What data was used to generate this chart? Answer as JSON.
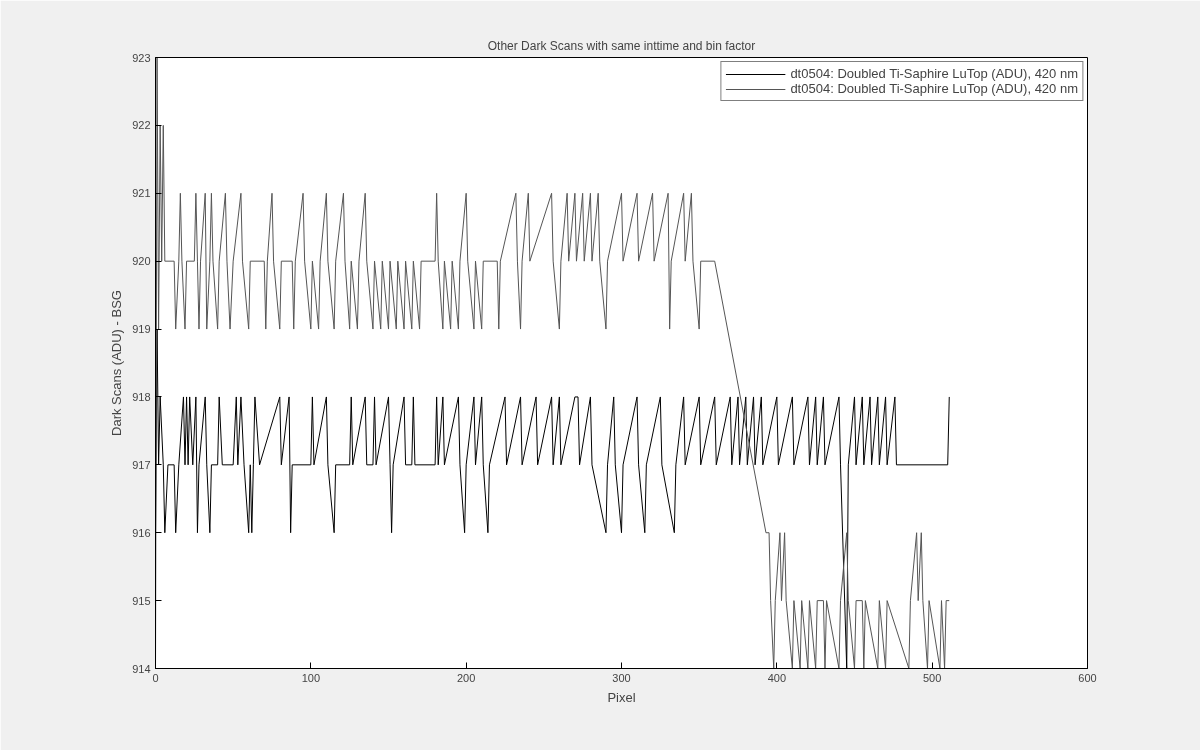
{
  "chart_data": {
    "type": "line",
    "title": "Other Dark Scans with same inttime and bin factor",
    "xlabel": "Pixel",
    "ylabel": "Dark Scans (ADU) - BSG",
    "xlim": [
      0,
      600
    ],
    "xticks": [
      0,
      100,
      200,
      300,
      400,
      500,
      600
    ],
    "ylim": [
      914,
      923
    ],
    "yticks": [
      914,
      915,
      916,
      917,
      918,
      919,
      920,
      921,
      922,
      923
    ],
    "grid": false,
    "legend": "top right",
    "line_style": "solid",
    "marker": "none",
    "series": [
      {
        "name": "dt0504: Doubled Ti-Saphire LuTop (ADU), 420 nm",
        "color": "#000000",
        "x": [
          0,
          1,
          2,
          3,
          5,
          6,
          8,
          12,
          13,
          15,
          18,
          19,
          20,
          21,
          22,
          24,
          26,
          27,
          28,
          32,
          33,
          35,
          36,
          40,
          41,
          43,
          50,
          52,
          53,
          55,
          57,
          60,
          61,
          62,
          63,
          64,
          67,
          80,
          81,
          86,
          87,
          88,
          100,
          101,
          102,
          110,
          111,
          115,
          116,
          125,
          126,
          127,
          135,
          136,
          140,
          141,
          142,
          150,
          151,
          152,
          153,
          160,
          161,
          165,
          166,
          167,
          180,
          181,
          182,
          185,
          186,
          195,
          196,
          199,
          200,
          205,
          206,
          210,
          211,
          214,
          215,
          225,
          226,
          235,
          236,
          245,
          246,
          255,
          256,
          260,
          261,
          270,
          272,
          273,
          280,
          281,
          290,
          291,
          295,
          296,
          300,
          301,
          310,
          311,
          315,
          316,
          325,
          326,
          334,
          335,
          340,
          341,
          350,
          351,
          360,
          361,
          370,
          371,
          375,
          376,
          380,
          381,
          385,
          386,
          390,
          391,
          400,
          401,
          410,
          411,
          420,
          421,
          425,
          426,
          430,
          431,
          440,
          441,
          445,
          446,
          450,
          451,
          455,
          456,
          460,
          461,
          465,
          466,
          470,
          471,
          476,
          477,
          510,
          511
        ],
        "values": [
          916,
          919,
          917,
          918,
          917,
          916,
          917,
          917,
          916,
          917,
          918,
          917,
          918,
          917,
          918,
          917,
          918,
          916,
          917,
          918,
          917,
          916,
          917,
          917,
          918,
          917,
          917,
          918,
          917,
          918,
          917,
          916,
          917,
          916,
          917,
          918,
          917,
          918,
          917,
          918,
          916,
          917,
          917,
          918,
          917,
          918,
          917,
          916,
          917,
          917,
          918,
          917,
          918,
          917,
          917,
          918,
          917,
          918,
          917,
          916,
          917,
          918,
          917,
          917,
          918,
          917,
          917,
          918,
          917,
          918,
          917,
          918,
          917,
          916,
          917,
          918,
          917,
          918,
          917,
          916,
          917,
          918,
          917,
          918,
          917,
          918,
          917,
          918,
          917,
          918,
          917,
          918,
          918,
          917,
          918,
          917,
          916,
          917,
          918,
          917,
          916,
          917,
          918,
          917,
          916,
          917,
          918,
          917,
          916,
          917,
          918,
          917,
          918,
          917,
          918,
          917,
          918,
          917,
          918,
          917,
          918,
          917,
          918,
          917,
          918,
          917,
          918,
          917,
          918,
          917,
          918,
          917,
          918,
          917,
          918,
          917,
          918,
          917,
          914,
          917,
          918,
          917,
          918,
          917,
          918,
          917,
          918,
          917,
          918,
          917,
          918,
          917,
          917,
          918
        ]
      },
      {
        "name": "dt0504: Doubled Ti-Saphire LuTop (ADU), 420 nm",
        "color": "#555555",
        "x": [
          0,
          1,
          2,
          3,
          4,
          5,
          6,
          12,
          13,
          15,
          16,
          17,
          19,
          20,
          25,
          26,
          27,
          28,
          29,
          32,
          33,
          35,
          36,
          37,
          40,
          41,
          45,
          46,
          48,
          50,
          55,
          56,
          60,
          61,
          70,
          71,
          72,
          75,
          76,
          80,
          81,
          88,
          89,
          90,
          95,
          96,
          100,
          101,
          105,
          106,
          110,
          111,
          115,
          116,
          121,
          122,
          125,
          126,
          130,
          131,
          135,
          136,
          140,
          141,
          145,
          146,
          150,
          151,
          155,
          156,
          160,
          161,
          165,
          166,
          170,
          171,
          180,
          181,
          182,
          185,
          186,
          190,
          191,
          195,
          196,
          200,
          201,
          205,
          206,
          210,
          211,
          220,
          221,
          222,
          232,
          233,
          235,
          236,
          240,
          241,
          255,
          256,
          260,
          261,
          265,
          266,
          270,
          271,
          275,
          276,
          280,
          281,
          285,
          286,
          290,
          291,
          300,
          301,
          310,
          311,
          320,
          321,
          330,
          331,
          332,
          340,
          341,
          345,
          346,
          350,
          351,
          360,
          393,
          395,
          396,
          398,
          399,
          402,
          403,
          405,
          406,
          410,
          411,
          415,
          416,
          420,
          421,
          425,
          426,
          430,
          431,
          432,
          440,
          441,
          445,
          446,
          450,
          451,
          455,
          456,
          457,
          465,
          466,
          470,
          471,
          485,
          486,
          490,
          491,
          493,
          494,
          497,
          498,
          505,
          506,
          508,
          509,
          511
        ],
        "values": [
          914,
          923,
          919,
          922,
          920,
          922,
          920,
          920,
          919,
          920,
          921,
          920,
          919,
          920,
          920,
          921,
          920,
          919,
          920,
          921,
          919,
          920,
          921,
          920,
          919,
          920,
          921,
          920,
          919,
          920,
          921,
          920,
          919,
          920,
          920,
          919,
          920,
          921,
          920,
          919,
          920,
          920,
          919,
          920,
          921,
          920,
          919,
          920,
          919,
          920,
          921,
          920,
          919,
          920,
          921,
          920,
          919,
          920,
          919,
          920,
          921,
          920,
          919,
          920,
          919,
          920,
          919,
          920,
          919,
          920,
          919,
          920,
          919,
          920,
          919,
          920,
          920,
          921,
          920,
          919,
          920,
          919,
          920,
          919,
          920,
          921,
          920,
          919,
          920,
          919,
          920,
          920,
          919,
          920,
          921,
          920,
          919,
          920,
          921,
          920,
          921,
          920,
          919,
          920,
          921,
          920,
          921,
          920,
          921,
          920,
          921,
          920,
          921,
          920,
          919,
          920,
          921,
          920,
          921,
          920,
          921,
          920,
          921,
          919,
          920,
          921,
          920,
          921,
          920,
          919,
          920,
          920,
          916,
          916,
          915,
          914,
          915,
          916,
          915,
          916,
          915,
          914,
          915,
          914,
          915,
          914,
          915,
          914,
          915,
          915,
          914,
          915,
          914,
          915,
          916,
          915,
          914,
          915,
          915,
          914,
          915,
          914,
          915,
          914,
          915,
          914,
          915,
          916,
          915,
          916,
          915,
          914,
          915,
          914,
          915,
          914,
          915,
          915
        ]
      }
    ]
  }
}
